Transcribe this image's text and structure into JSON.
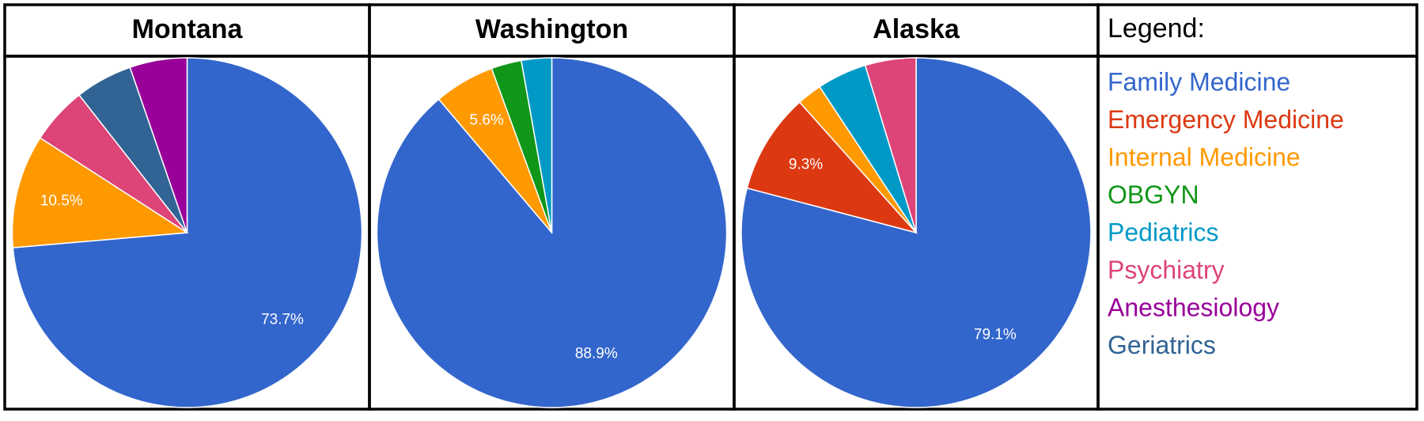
{
  "chart_data": [
    {
      "type": "pie",
      "title": "Montana",
      "categories": [
        "Family Medicine",
        "Internal Medicine",
        "Psychiatry",
        "Geriatrics",
        "Anesthesiology"
      ],
      "values": [
        73.7,
        10.5,
        5.3,
        5.3,
        5.3
      ],
      "value_labels": [
        "73.7%",
        "10.5%",
        null,
        null,
        null
      ]
    },
    {
      "type": "pie",
      "title": "Washington",
      "categories": [
        "Family Medicine",
        "Internal Medicine",
        "OBGYN",
        "Pediatrics"
      ],
      "values": [
        88.9,
        5.6,
        2.8,
        2.8
      ],
      "value_labels": [
        "88.9%",
        "5.6%",
        null,
        null
      ]
    },
    {
      "type": "pie",
      "title": "Alaska",
      "categories": [
        "Family Medicine",
        "Emergency Medicine",
        "Internal Medicine",
        "Pediatrics",
        "Psychiatry"
      ],
      "values": [
        79.1,
        9.3,
        2.3,
        4.6,
        4.7
      ],
      "value_labels": [
        "79.1%",
        "9.3%",
        null,
        null,
        null
      ]
    }
  ],
  "legend": {
    "title": "Legend:",
    "items": [
      {
        "name": "Family Medicine",
        "color": "#3366cc"
      },
      {
        "name": "Emergency Medicine",
        "color": "#dc3912"
      },
      {
        "name": "Internal Medicine",
        "color": "#ff9900"
      },
      {
        "name": "OBGYN",
        "color": "#109618"
      },
      {
        "name": "Pediatrics",
        "color": "#0099c6"
      },
      {
        "name": "Psychiatry",
        "color": "#dd4477"
      },
      {
        "name": "Anesthesiology",
        "color": "#990099"
      },
      {
        "name": "Geriatrics",
        "color": "#316395"
      }
    ]
  }
}
